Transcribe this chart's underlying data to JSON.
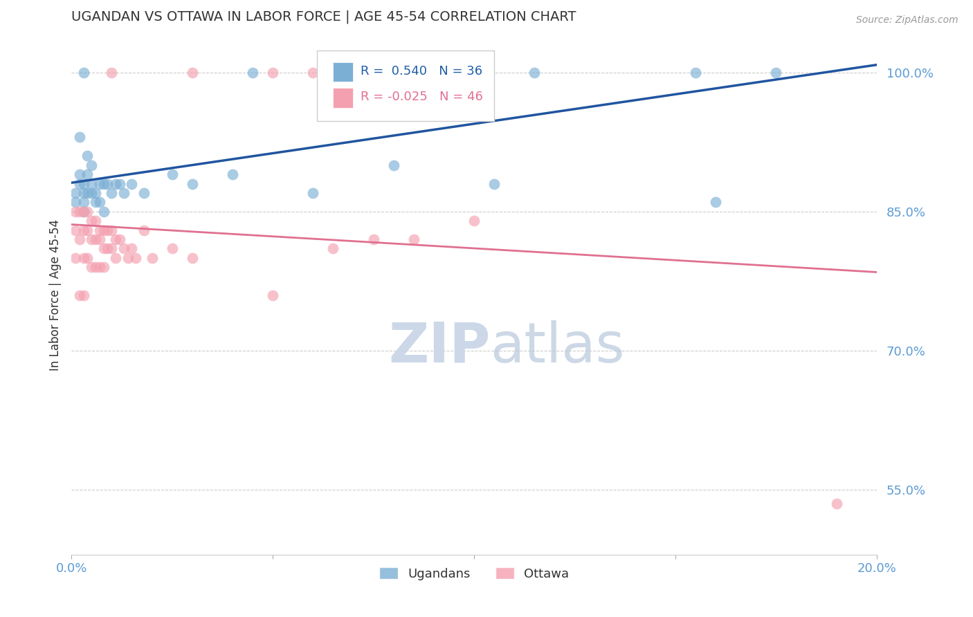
{
  "title": "UGANDAN VS OTTAWA IN LABOR FORCE | AGE 45-54 CORRELATION CHART",
  "source": "Source: ZipAtlas.com",
  "ylabel": "In Labor Force | Age 45-54",
  "xlim": [
    0.0,
    0.2
  ],
  "ylim": [
    0.48,
    1.04
  ],
  "ytick_positions": [
    0.55,
    0.7,
    0.85,
    1.0
  ],
  "ytick_labels": [
    "55.0%",
    "70.0%",
    "85.0%",
    "100.0%"
  ],
  "ugandan_color": "#7bafd4",
  "ottawa_color": "#f4a0b0",
  "ugandan_line_color": "#2055a0",
  "ottawa_line_color": "#e07090",
  "ugandan_R": 0.54,
  "ugandan_N": 36,
  "ottawa_R": -0.025,
  "ottawa_N": 46,
  "legend_label_1": "Ugandans",
  "legend_label_2": "Ottawa",
  "ugandan_x": [
    0.001,
    0.001,
    0.002,
    0.002,
    0.002,
    0.003,
    0.003,
    0.003,
    0.003,
    0.004,
    0.004,
    0.004,
    0.005,
    0.005,
    0.005,
    0.006,
    0.006,
    0.007,
    0.007,
    0.008,
    0.008,
    0.009,
    0.01,
    0.011,
    0.012,
    0.013,
    0.015,
    0.018,
    0.025,
    0.03,
    0.04,
    0.06,
    0.08,
    0.105,
    0.16,
    0.175
  ],
  "ugandan_y": [
    0.86,
    0.87,
    0.88,
    0.89,
    0.93,
    0.87,
    0.88,
    0.86,
    0.85,
    0.87,
    0.89,
    0.91,
    0.87,
    0.88,
    0.9,
    0.86,
    0.87,
    0.86,
    0.88,
    0.85,
    0.88,
    0.88,
    0.87,
    0.88,
    0.88,
    0.87,
    0.88,
    0.87,
    0.89,
    0.88,
    0.89,
    0.87,
    0.9,
    0.88,
    0.86,
    1.0
  ],
  "ottawa_x": [
    0.001,
    0.001,
    0.001,
    0.002,
    0.002,
    0.002,
    0.003,
    0.003,
    0.003,
    0.003,
    0.004,
    0.004,
    0.004,
    0.005,
    0.005,
    0.005,
    0.006,
    0.006,
    0.006,
    0.007,
    0.007,
    0.007,
    0.008,
    0.008,
    0.008,
    0.009,
    0.009,
    0.01,
    0.01,
    0.011,
    0.011,
    0.012,
    0.013,
    0.014,
    0.015,
    0.016,
    0.018,
    0.02,
    0.025,
    0.03,
    0.05,
    0.065,
    0.075,
    0.085,
    0.1,
    0.19
  ],
  "ottawa_y": [
    0.85,
    0.83,
    0.8,
    0.85,
    0.82,
    0.76,
    0.85,
    0.83,
    0.8,
    0.76,
    0.85,
    0.83,
    0.8,
    0.84,
    0.82,
    0.79,
    0.84,
    0.82,
    0.79,
    0.83,
    0.82,
    0.79,
    0.83,
    0.81,
    0.79,
    0.83,
    0.81,
    0.83,
    0.81,
    0.82,
    0.8,
    0.82,
    0.81,
    0.8,
    0.81,
    0.8,
    0.83,
    0.8,
    0.81,
    0.8,
    0.76,
    0.81,
    0.82,
    0.82,
    0.84,
    0.535
  ],
  "top_ugandan_x": [
    0.003,
    0.045,
    0.065,
    0.075,
    0.085,
    0.095,
    0.115,
    0.155
  ],
  "top_ugandan_y": [
    1.0,
    1.0,
    1.0,
    1.0,
    1.0,
    1.0,
    1.0,
    1.0
  ],
  "top_ottawa_x": [
    0.01,
    0.03,
    0.05,
    0.06,
    0.07,
    0.085
  ],
  "top_ottawa_y": [
    1.0,
    1.0,
    1.0,
    1.0,
    1.0,
    1.0
  ],
  "background_color": "#ffffff",
  "grid_color": "#cccccc",
  "title_color": "#333333",
  "axis_label_color": "#333333",
  "tick_label_color": "#5b9bd5",
  "watermark_zip": "ZIP",
  "watermark_atlas": "atlas",
  "watermark_color": "#ccd8e8"
}
